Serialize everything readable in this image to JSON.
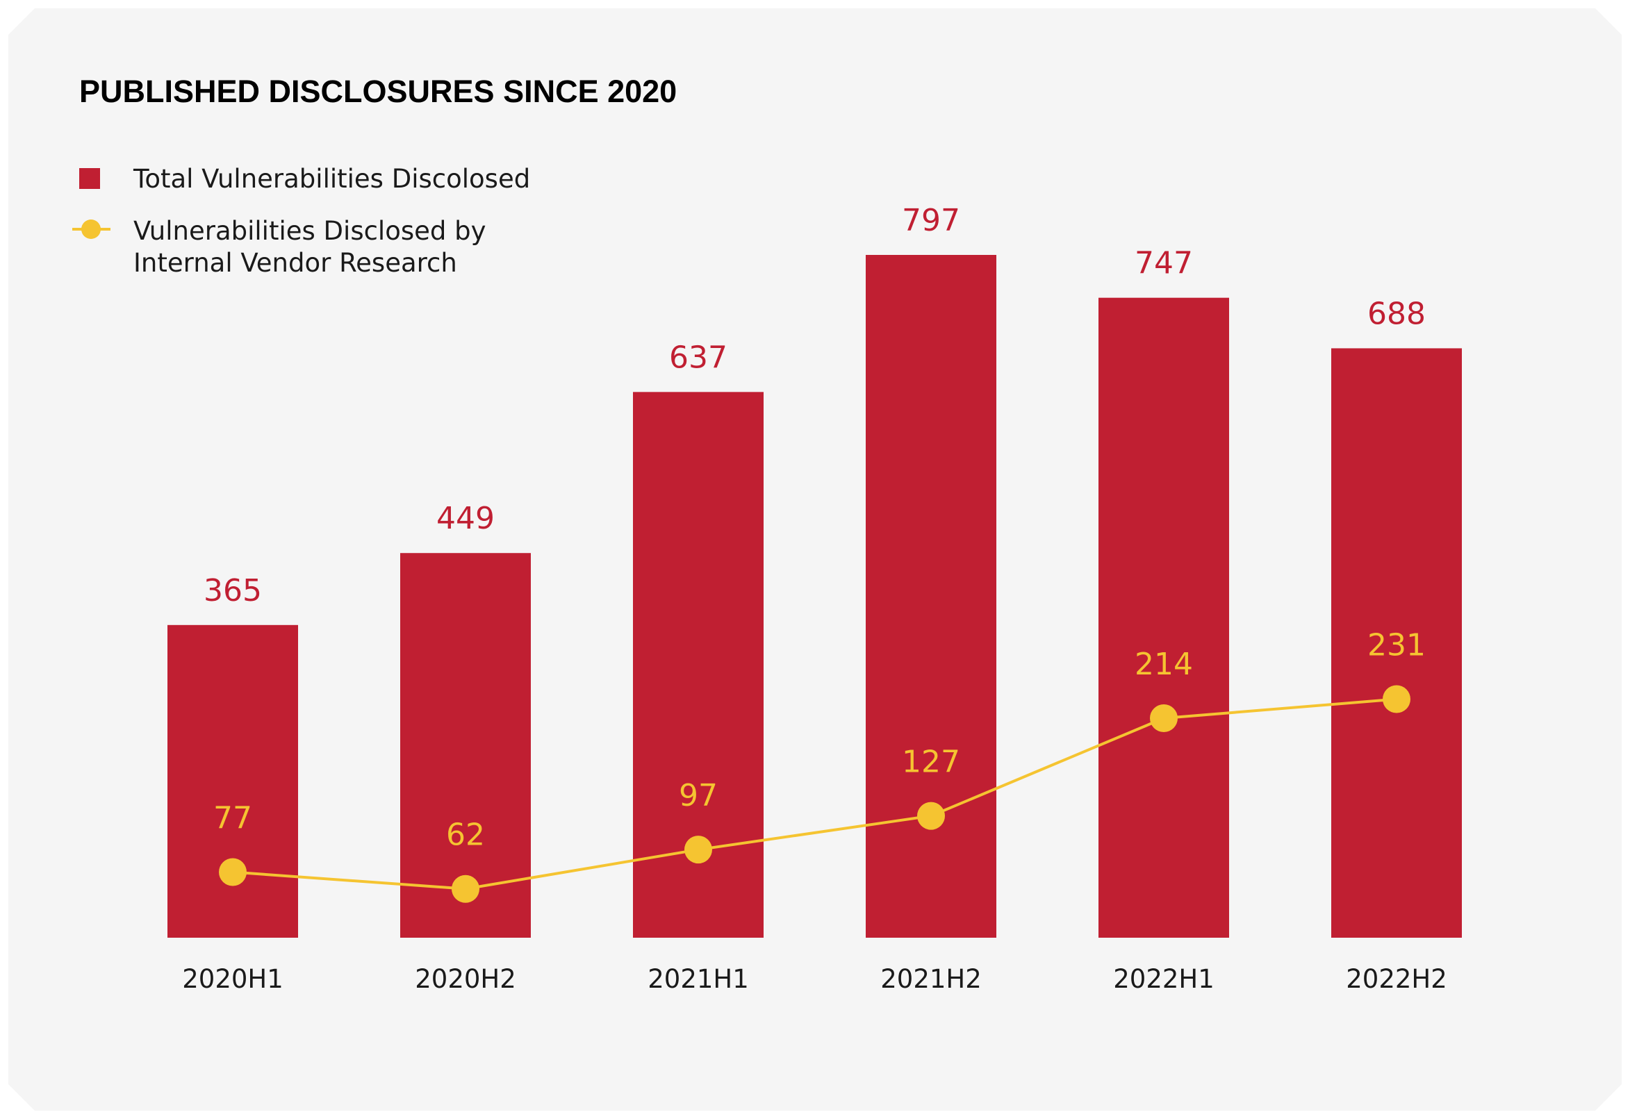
{
  "colors": {
    "background": "#f5f5f5",
    "bar": "#c01f32",
    "line": "#f5c431",
    "text": "#1a1a1a"
  },
  "chart_data": {
    "type": "bar",
    "title": "PUBLISHED DISCLOSURES SINCE 2020",
    "categories": [
      "2020H1",
      "2020H2",
      "2021H1",
      "2021H2",
      "2022H1",
      "2022H2"
    ],
    "series": [
      {
        "name": "Total Vulnerabilities Discolosed",
        "type": "bar",
        "values": [
          365,
          449,
          637,
          797,
          747,
          688
        ]
      },
      {
        "name": "Vulnerabilities Disclosed by Internal Vendor Research",
        "type": "line",
        "values": [
          77,
          62,
          97,
          127,
          214,
          231
        ]
      }
    ],
    "legend": {
      "bar_label": "Total Vulnerabilities Discolosed",
      "line_label_line1": "Vulnerabilities Disclosed by",
      "line_label_line2": "Internal Vendor Research",
      "placement": "top-left"
    },
    "xlabel": "",
    "ylabel": "",
    "ylim": [
      0,
      797
    ],
    "grid": false
  }
}
